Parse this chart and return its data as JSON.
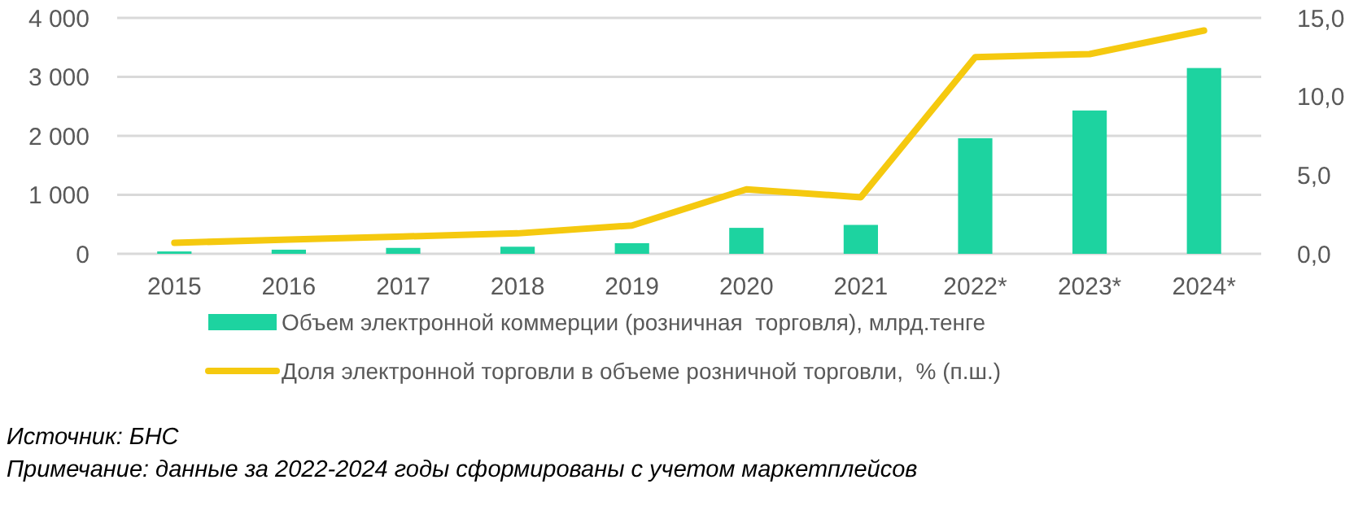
{
  "chart_data": {
    "type": "bar",
    "categories": [
      "2015",
      "2016",
      "2017",
      "2018",
      "2019",
      "2020",
      "2021",
      "2022*",
      "2023*",
      "2024*"
    ],
    "series": [
      {
        "name": "Объем электронной коммерции (розничная  торговля), млрд.тенге",
        "color": "#1dd3a0",
        "values": [
          40,
          70,
          100,
          120,
          180,
          440,
          490,
          1960,
          2430,
          3150
        ]
      },
      {
        "name": "Доля электронной торговли в объеме розничной торговли,  % (п.ш.)",
        "type": "line",
        "axis": "y2",
        "color": "#f5c90f",
        "values": [
          0.7,
          0.9,
          1.1,
          1.3,
          1.8,
          4.1,
          3.6,
          12.5,
          12.7,
          14.2
        ]
      }
    ],
    "ylim": [
      0,
      4000
    ],
    "yticks": [
      {
        "value": 0,
        "label": "0"
      },
      {
        "value": 1000,
        "label": "1 000"
      },
      {
        "value": 2000,
        "label": "2 000"
      },
      {
        "value": 3000,
        "label": "3 000"
      },
      {
        "value": 4000,
        "label": "4 000"
      }
    ],
    "y2lim": [
      0,
      15
    ],
    "y2ticks": [
      {
        "value": 0,
        "label": "0,0"
      },
      {
        "value": 5,
        "label": "5,0"
      },
      {
        "value": 10,
        "label": "10,0"
      },
      {
        "value": 15,
        "label": "15,0"
      }
    ],
    "grid": "y",
    "legend": "bottom",
    "marker": "none",
    "annotations": [
      "Источник: БНС",
      "Примечание: данные за 2022-2024 годы сформированы с учетом маркетплейсов"
    ]
  }
}
